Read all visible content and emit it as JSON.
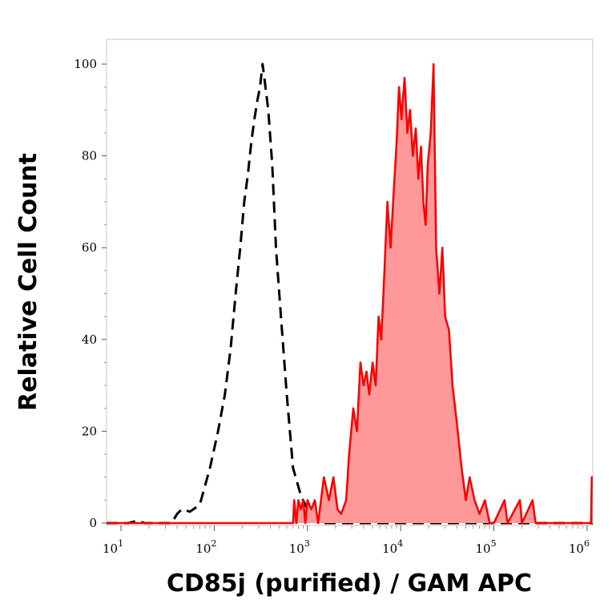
{
  "chart_data": {
    "type": "area",
    "xlabel": "CD85j (purified)  / GAM APC",
    "ylabel": "Relative Cell Count",
    "x_scale": "log",
    "xlim": [
      7,
      1150000
    ],
    "ylim": [
      0,
      100
    ],
    "y_ticks": [
      0,
      20,
      40,
      60,
      80,
      100
    ],
    "x_ticks": [
      {
        "value": 10,
        "base": "10",
        "exp": "1"
      },
      {
        "value": 100,
        "base": "10",
        "exp": "2"
      },
      {
        "value": 1000,
        "base": "10",
        "exp": "3"
      },
      {
        "value": 10000,
        "base": "10",
        "exp": "4"
      },
      {
        "value": 100000,
        "base": "10",
        "exp": "5"
      },
      {
        "value": 1000000,
        "base": "10",
        "exp": "6"
      }
    ],
    "grid": false,
    "series": [
      {
        "style": "dashed",
        "color": "#000000",
        "fill": "none",
        "points": [
          [
            7,
            0
          ],
          [
            12,
            0
          ],
          [
            15,
            0.5
          ],
          [
            18,
            0
          ],
          [
            35,
            0
          ],
          [
            40,
            2
          ],
          [
            45,
            3
          ],
          [
            55,
            2.5
          ],
          [
            70,
            4
          ],
          [
            90,
            12
          ],
          [
            110,
            20
          ],
          [
            130,
            28
          ],
          [
            150,
            38
          ],
          [
            170,
            50
          ],
          [
            190,
            60
          ],
          [
            210,
            70
          ],
          [
            230,
            76
          ],
          [
            250,
            83
          ],
          [
            270,
            88
          ],
          [
            290,
            92
          ],
          [
            310,
            95
          ],
          [
            330,
            100
          ],
          [
            350,
            96
          ],
          [
            380,
            90
          ],
          [
            420,
            78
          ],
          [
            460,
            60
          ],
          [
            520,
            45
          ],
          [
            600,
            28
          ],
          [
            700,
            12
          ],
          [
            850,
            6
          ],
          [
            1000,
            3
          ],
          [
            1300,
            0
          ],
          [
            1150000,
            0
          ]
        ]
      },
      {
        "style": "solid",
        "color": "#ff0000",
        "fill": "#ff9999",
        "points": [
          [
            7,
            0
          ],
          [
            700,
            0
          ],
          [
            720,
            5
          ],
          [
            760,
            0
          ],
          [
            800,
            5
          ],
          [
            850,
            3
          ],
          [
            900,
            5
          ],
          [
            950,
            0
          ],
          [
            1000,
            5
          ],
          [
            1100,
            3
          ],
          [
            1200,
            5
          ],
          [
            1300,
            0
          ],
          [
            1500,
            10
          ],
          [
            1700,
            5
          ],
          [
            1900,
            10
          ],
          [
            2100,
            3
          ],
          [
            2300,
            2
          ],
          [
            2600,
            5
          ],
          [
            2800,
            15
          ],
          [
            3100,
            25
          ],
          [
            3400,
            20
          ],
          [
            3700,
            35
          ],
          [
            4000,
            30
          ],
          [
            4300,
            33
          ],
          [
            4600,
            28
          ],
          [
            5000,
            35
          ],
          [
            5400,
            30
          ],
          [
            5800,
            45
          ],
          [
            6200,
            40
          ],
          [
            6700,
            55
          ],
          [
            7200,
            70
          ],
          [
            7800,
            60
          ],
          [
            8400,
            72
          ],
          [
            9000,
            82
          ],
          [
            9600,
            95
          ],
          [
            10200,
            88
          ],
          [
            11000,
            97
          ],
          [
            11800,
            85
          ],
          [
            12600,
            90
          ],
          [
            13500,
            80
          ],
          [
            14500,
            86
          ],
          [
            15500,
            75
          ],
          [
            16500,
            82
          ],
          [
            17500,
            70
          ],
          [
            18500,
            65
          ],
          [
            19500,
            78
          ],
          [
            21000,
            85
          ],
          [
            22500,
            100
          ],
          [
            24000,
            60
          ],
          [
            26000,
            50
          ],
          [
            28000,
            60
          ],
          [
            30000,
            45
          ],
          [
            33000,
            42
          ],
          [
            36000,
            30
          ],
          [
            40000,
            22
          ],
          [
            45000,
            12
          ],
          [
            50000,
            5
          ],
          [
            55000,
            10
          ],
          [
            62000,
            5
          ],
          [
            70000,
            2
          ],
          [
            80000,
            5
          ],
          [
            90000,
            0
          ],
          [
            100000,
            0
          ],
          [
            130000,
            5
          ],
          [
            140000,
            0
          ],
          [
            190000,
            5
          ],
          [
            200000,
            0
          ],
          [
            260000,
            5
          ],
          [
            280000,
            0
          ],
          [
            1100000,
            0
          ],
          [
            1120000,
            10
          ],
          [
            1150000,
            10
          ]
        ]
      }
    ]
  }
}
